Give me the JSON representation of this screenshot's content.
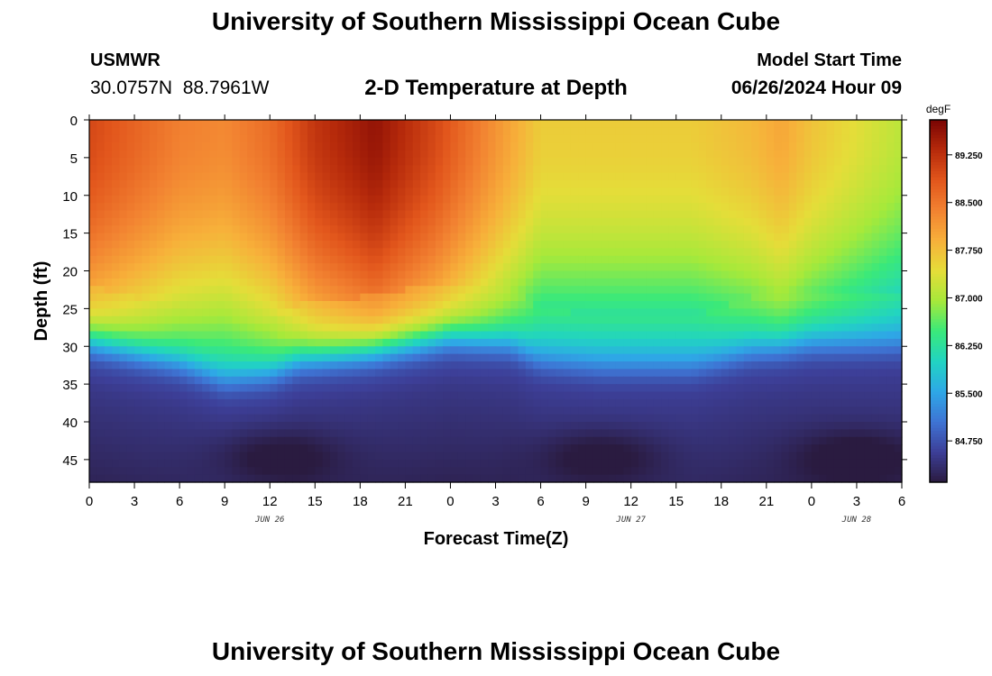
{
  "header": {
    "title": "University of Southern Mississippi Ocean Cube",
    "station": "USMWR",
    "coordinates": "30.0757N  88.7961W",
    "subtitle": "2-D Temperature at Depth",
    "start_label": "Model Start Time",
    "start_value": "06/26/2024 Hour 09"
  },
  "footer": {
    "title": "University of Southern Mississippi Ocean Cube"
  },
  "colors": {
    "scale": [
      "#2a1b40",
      "#3d3f98",
      "#3e74d4",
      "#2ea8e6",
      "#21d4c2",
      "#3ae97a",
      "#a7e93a",
      "#e5dd39",
      "#f7b03a",
      "#f28231",
      "#e2561c",
      "#b62a0b",
      "#7a0403"
    ]
  },
  "chart_data": {
    "type": "heatmap",
    "title": "2-D Temperature at Depth",
    "xlabel": "Forecast Time(Z)",
    "ylabel": "Depth (ft)",
    "x_tick_labels": [
      "0",
      "3",
      "6",
      "9",
      "12",
      "15",
      "18",
      "21",
      "0",
      "3",
      "6",
      "9",
      "12",
      "15",
      "18",
      "21",
      "0",
      "3",
      "6"
    ],
    "x_range_hours": [
      0,
      54
    ],
    "date_labels": [
      {
        "text": "JUN 26",
        "hour": 12
      },
      {
        "text": "JUN 27",
        "hour": 36
      },
      {
        "text": "JUN 28",
        "hour": 51
      }
    ],
    "y_range_ft": [
      0,
      48
    ],
    "y_tick_labels": [
      "0",
      "5",
      "10",
      "15",
      "20",
      "25",
      "30",
      "35",
      "40",
      "45"
    ],
    "colorbar": {
      "unit": "degF",
      "min": 84.1,
      "max": 89.8,
      "tick_labels": [
        "89.250",
        "88.500",
        "87.750",
        "87.000",
        "86.250",
        "85.500",
        "84.750"
      ],
      "tick_values": [
        89.25,
        88.5,
        87.75,
        87.0,
        86.25,
        85.5,
        84.75
      ]
    },
    "surface_temperature_by_hour": [
      [
        0,
        89.0
      ],
      [
        6,
        88.4
      ],
      [
        9,
        88.3
      ],
      [
        12,
        88.6
      ],
      [
        15,
        89.2
      ],
      [
        19,
        89.6
      ],
      [
        23,
        89.0
      ],
      [
        27,
        88.2
      ],
      [
        30,
        87.6
      ],
      [
        36,
        87.6
      ],
      [
        40,
        87.6
      ],
      [
        44,
        87.8
      ],
      [
        46,
        88.0
      ],
      [
        48,
        87.7
      ],
      [
        54,
        87.1
      ]
    ],
    "thermocline_depth_ft_by_hour": [
      [
        0,
        28
      ],
      [
        6,
        31
      ],
      [
        9,
        33.5
      ],
      [
        12,
        32.5
      ],
      [
        14,
        30.5
      ],
      [
        18,
        29.5
      ],
      [
        24,
        27.5
      ],
      [
        28,
        28.5
      ],
      [
        30,
        31
      ],
      [
        34,
        32
      ],
      [
        40,
        32
      ],
      [
        44,
        29.5
      ],
      [
        48,
        28.5
      ],
      [
        54,
        29
      ]
    ],
    "bottom_temperature_degF": 84.5,
    "cold_bottom_cells": [
      {
        "hour": 12.5,
        "depth_ft": 44.5,
        "value": 84.2
      },
      {
        "hour": 34,
        "depth_ft": 44.5,
        "value": 84.2
      },
      {
        "hour": 51,
        "depth_ft": 44.5,
        "value": 84.2
      }
    ]
  }
}
